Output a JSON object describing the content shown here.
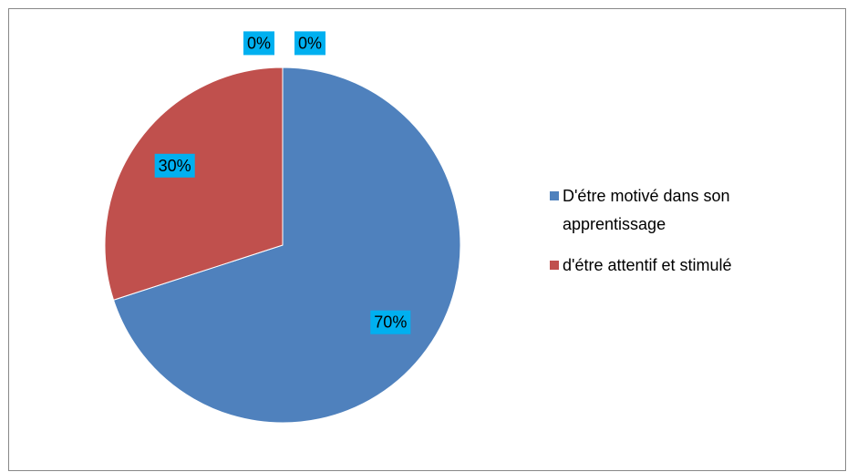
{
  "chart_data": {
    "type": "pie",
    "categories": [
      "D'étre motivé dans son apprentissage",
      "d'étre attentif et stimulé",
      null,
      null
    ],
    "values": [
      70,
      30,
      0,
      0
    ],
    "value_labels": [
      "70%",
      "30%",
      "0%",
      "0%"
    ],
    "colors": [
      "#4f81bd",
      "#c0504d",
      "#9bbb59",
      "#8064a2"
    ],
    "legend": "right"
  }
}
